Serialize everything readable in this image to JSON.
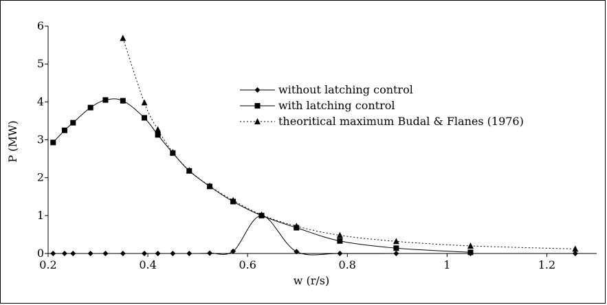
{
  "chart_data": {
    "type": "line",
    "title": "",
    "xlabel": "w (r/s)",
    "ylabel": "P (MW)",
    "xlim": [
      0.2,
      1.3
    ],
    "ylim": [
      0,
      6
    ],
    "xticks": [
      0.2,
      0.4,
      0.6,
      0.8,
      1.0,
      1.2
    ],
    "xtick_labels": [
      "0.2",
      "0.4",
      "0.6",
      "0.8",
      "1",
      "1.2"
    ],
    "yticks": [
      0,
      1,
      2,
      3,
      4,
      5,
      6
    ],
    "ytick_labels": [
      "0",
      "1",
      "2",
      "3",
      "4",
      "5",
      "6"
    ],
    "grid": false,
    "legend_position": "center-right",
    "series": [
      {
        "name": "without latching control",
        "marker": "diamond",
        "line": "solid",
        "x": [
          0.21,
          0.233,
          0.25,
          0.285,
          0.315,
          0.35,
          0.393,
          0.42,
          0.45,
          0.483,
          0.524,
          0.571,
          0.628,
          0.698,
          0.785,
          0.898,
          1.047,
          1.257
        ],
        "y": [
          0.0,
          0.0,
          0.0,
          0.0,
          0.0,
          0.0,
          0.0,
          0.0,
          0.0,
          0.0,
          0.01,
          0.06,
          1.0,
          0.05,
          0.0,
          0.0,
          0.0,
          0.0
        ]
      },
      {
        "name": "with latching control",
        "marker": "square",
        "line": "solid",
        "x": [
          0.21,
          0.233,
          0.25,
          0.285,
          0.315,
          0.35,
          0.393,
          0.42,
          0.45,
          0.483,
          0.524,
          0.571,
          0.628,
          0.698,
          0.785,
          0.898,
          1.047
        ],
        "y": [
          2.93,
          3.25,
          3.45,
          3.85,
          4.05,
          4.03,
          3.58,
          3.13,
          2.65,
          2.18,
          1.77,
          1.37,
          1.0,
          0.68,
          0.33,
          0.14,
          0.03
        ]
      },
      {
        "name": "theoritical maximum Budal & Flanes (1976)",
        "marker": "triangle",
        "line": "dotted",
        "x": [
          0.35,
          0.393,
          0.42,
          0.45,
          0.483,
          0.524,
          0.571,
          0.628,
          0.698,
          0.785,
          0.898,
          1.047,
          1.257
        ],
        "y": [
          5.68,
          3.98,
          3.27,
          2.67,
          2.19,
          1.78,
          1.4,
          1.02,
          0.72,
          0.48,
          0.32,
          0.2,
          0.12
        ]
      }
    ]
  }
}
